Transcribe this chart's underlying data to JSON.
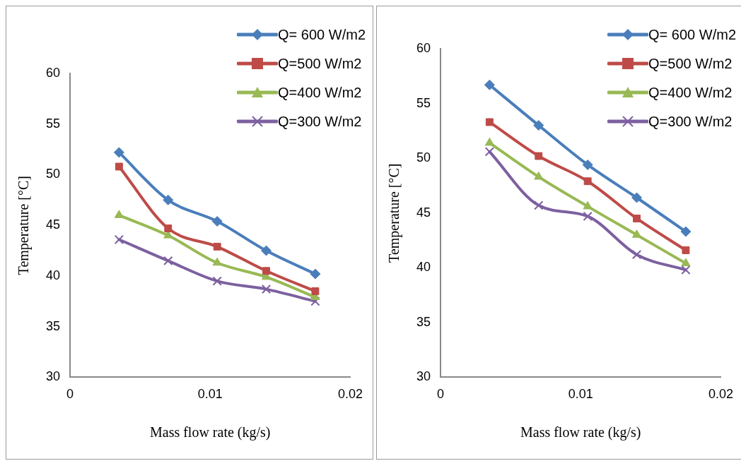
{
  "chart_data": [
    {
      "type": "line",
      "xlabel": "Mass flow rate (kg/s)",
      "ylabel": "Temperature [°C]",
      "x": [
        0.0035,
        0.007,
        0.0105,
        0.014,
        0.0175
      ],
      "xlim": [
        0,
        0.02
      ],
      "xticks": [
        0,
        0.01,
        0.02
      ],
      "ylim": [
        30,
        60
      ],
      "yticks": [
        30,
        35,
        40,
        45,
        50,
        55,
        60
      ],
      "grid": false,
      "legend": "top right",
      "series": [
        {
          "name": "Q= 600 W/m2",
          "color": "#4a7ebb",
          "marker": "diamond",
          "values": [
            52.2,
            47.5,
            45.4,
            42.5,
            40.2
          ]
        },
        {
          "name": "Q=500 W/m2",
          "color": "#be4b48",
          "marker": "square",
          "values": [
            50.8,
            44.7,
            42.9,
            40.5,
            38.5
          ]
        },
        {
          "name": "Q=400 W/m2",
          "color": "#98b954",
          "marker": "triangle",
          "values": [
            46.0,
            44.0,
            41.3,
            39.9,
            37.9
          ]
        },
        {
          "name": "Q=300 W/m2",
          "color": "#7d60a0",
          "marker": "cross",
          "values": [
            43.6,
            41.5,
            39.5,
            38.7,
            37.5
          ]
        }
      ]
    },
    {
      "type": "line",
      "xlabel": "Mass flow rate (kg/s)",
      "ylabel": "Temperature [°C]",
      "x": [
        0.0035,
        0.007,
        0.0105,
        0.014,
        0.0175
      ],
      "xlim": [
        0,
        0.02
      ],
      "xticks": [
        0,
        0.01,
        0.02
      ],
      "ylim": [
        30,
        60
      ],
      "yticks": [
        30,
        35,
        40,
        45,
        50,
        55,
        60
      ],
      "grid": false,
      "legend": "top right",
      "series": [
        {
          "name": "Q= 600 W/m2",
          "color": "#4a7ebb",
          "marker": "diamond",
          "values": [
            56.7,
            53.0,
            49.4,
            46.4,
            43.3
          ]
        },
        {
          "name": "Q=500 W/m2",
          "color": "#be4b48",
          "marker": "square",
          "values": [
            53.3,
            50.2,
            47.9,
            44.5,
            41.6
          ]
        },
        {
          "name": "Q=400 W/m2",
          "color": "#98b954",
          "marker": "triangle",
          "values": [
            51.4,
            48.3,
            45.6,
            43.0,
            40.4
          ]
        },
        {
          "name": "Q=300 W/m2",
          "color": "#7d60a0",
          "marker": "cross",
          "values": [
            50.6,
            45.7,
            44.7,
            41.2,
            39.8
          ]
        }
      ]
    }
  ]
}
